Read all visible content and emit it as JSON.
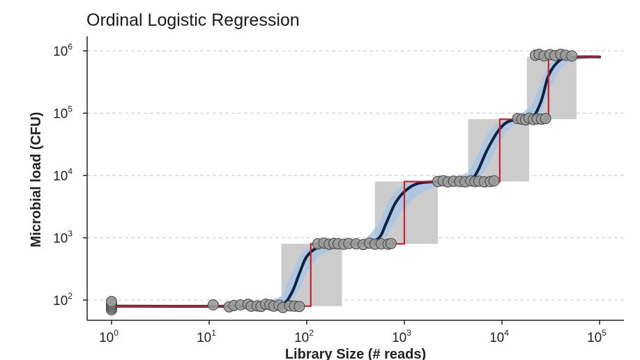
{
  "chart_data": {
    "type": "line",
    "title": "Ordinal Logistic Regression",
    "xlabel": "Library Size (# reads)",
    "ylabel": "Microbial load (CFU)",
    "x_scale": "log10",
    "y_scale": "log10",
    "xlim": [
      1,
      100000
    ],
    "ylim": [
      60,
      1200000
    ],
    "x_ticks": [
      {
        "value": 1,
        "base": "10",
        "exp": "0"
      },
      {
        "value": 10,
        "base": "10",
        "exp": "1"
      },
      {
        "value": 100,
        "base": "10",
        "exp": "2"
      },
      {
        "value": 1000,
        "base": "10",
        "exp": "3"
      },
      {
        "value": 10000,
        "base": "10",
        "exp": "4"
      },
      {
        "value": 100000,
        "base": "10",
        "exp": "5"
      }
    ],
    "y_ticks": [
      {
        "value": 100,
        "base": "10",
        "exp": "2"
      },
      {
        "value": 1000,
        "base": "10",
        "exp": "3"
      },
      {
        "value": 10000,
        "base": "10",
        "exp": "4"
      },
      {
        "value": 100000,
        "base": "10",
        "exp": "5"
      },
      {
        "value": 1000000,
        "base": "10",
        "exp": "6"
      }
    ],
    "grid": "horizontal dashed",
    "colors": {
      "points_fill": "#9a9a9a",
      "points_stroke": "#444444",
      "boxes": "#cccccc",
      "ribbon": "#a9c4e4",
      "fit_line": "#0f2340",
      "step_line": "#cc1f2a"
    },
    "boxes": [
      {
        "x0": 55,
        "x1": 230,
        "y0": 80,
        "y1": 800
      },
      {
        "x0": 500,
        "x1": 2200,
        "y0": 800,
        "y1": 8000
      },
      {
        "x0": 4500,
        "x1": 19000,
        "y0": 8000,
        "y1": 80000
      },
      {
        "x0": 18000,
        "x1": 58000,
        "y0": 80000,
        "y1": 800000
      }
    ],
    "step_line": [
      [
        1,
        80
      ],
      [
        110,
        80
      ],
      [
        110,
        800
      ],
      [
        1000,
        800
      ],
      [
        1000,
        8000
      ],
      [
        9500,
        8000
      ],
      [
        9500,
        80000
      ],
      [
        30000,
        80000
      ],
      [
        30000,
        800000
      ],
      [
        100000,
        800000
      ]
    ],
    "fit_curve": [
      [
        1,
        80
      ],
      [
        30,
        80
      ],
      [
        55,
        85
      ],
      [
        70,
        130
      ],
      [
        85,
        280
      ],
      [
        100,
        500
      ],
      [
        130,
        700
      ],
      [
        200,
        790
      ],
      [
        400,
        810
      ],
      [
        550,
        1000
      ],
      [
        650,
        1700
      ],
      [
        800,
        3500
      ],
      [
        1000,
        5500
      ],
      [
        1400,
        7500
      ],
      [
        2500,
        8000
      ],
      [
        4500,
        8200
      ],
      [
        5500,
        11000
      ],
      [
        7000,
        25000
      ],
      [
        9000,
        50000
      ],
      [
        11000,
        70000
      ],
      [
        14000,
        79000
      ],
      [
        20000,
        82000
      ],
      [
        25000,
        150000
      ],
      [
        30000,
        400000
      ],
      [
        38000,
        680000
      ],
      [
        50000,
        790000
      ],
      [
        100000,
        800000
      ]
    ],
    "ribbon": [
      [
        1,
        80,
        80
      ],
      [
        30,
        78,
        84
      ],
      [
        55,
        75,
        115
      ],
      [
        70,
        90,
        260
      ],
      [
        85,
        150,
        500
      ],
      [
        100,
        280,
        700
      ],
      [
        130,
        500,
        790
      ],
      [
        200,
        720,
        830
      ],
      [
        400,
        780,
        950
      ],
      [
        550,
        820,
        1700
      ],
      [
        650,
        1000,
        3200
      ],
      [
        800,
        1800,
        5500
      ],
      [
        1000,
        3000,
        7200
      ],
      [
        1400,
        5000,
        8000
      ],
      [
        2500,
        7600,
        8400
      ],
      [
        4500,
        7900,
        11000
      ],
      [
        5500,
        8300,
        20000
      ],
      [
        7000,
        13000,
        45000
      ],
      [
        9000,
        30000,
        68000
      ],
      [
        11000,
        50000,
        78000
      ],
      [
        14000,
        70000,
        85000
      ],
      [
        20000,
        79000,
        130000
      ],
      [
        25000,
        90000,
        300000
      ],
      [
        30000,
        220000,
        600000
      ],
      [
        38000,
        480000,
        780000
      ],
      [
        50000,
        700000,
        810000
      ],
      [
        100000,
        790000,
        810000
      ]
    ],
    "points": [
      [
        1,
        70
      ],
      [
        1,
        75
      ],
      [
        1,
        80
      ],
      [
        1,
        85
      ],
      [
        1,
        90
      ],
      [
        1,
        95
      ],
      [
        11,
        84
      ],
      [
        16,
        78
      ],
      [
        18,
        82
      ],
      [
        21,
        84
      ],
      [
        25,
        86
      ],
      [
        27,
        80
      ],
      [
        31,
        81
      ],
      [
        34,
        79
      ],
      [
        38,
        86
      ],
      [
        42,
        84
      ],
      [
        46,
        80
      ],
      [
        52,
        83
      ],
      [
        57,
        76
      ],
      [
        67,
        81
      ],
      [
        75,
        80
      ],
      [
        84,
        79
      ],
      [
        130,
        800
      ],
      [
        150,
        820
      ],
      [
        170,
        790
      ],
      [
        190,
        810
      ],
      [
        210,
        800
      ],
      [
        240,
        790
      ],
      [
        270,
        810
      ],
      [
        320,
        800
      ],
      [
        380,
        780
      ],
      [
        440,
        820
      ],
      [
        500,
        790
      ],
      [
        580,
        800
      ],
      [
        680,
        790
      ],
      [
        730,
        810
      ],
      [
        2200,
        8000
      ],
      [
        2500,
        8200
      ],
      [
        2800,
        7900
      ],
      [
        3200,
        8100
      ],
      [
        3700,
        8000
      ],
      [
        4200,
        7900
      ],
      [
        4800,
        8200
      ],
      [
        5300,
        8000
      ],
      [
        5800,
        8100
      ],
      [
        6600,
        7900
      ],
      [
        7600,
        8000
      ],
      [
        8300,
        8200
      ],
      [
        14500,
        82000
      ],
      [
        16000,
        80000
      ],
      [
        17500,
        78000
      ],
      [
        19000,
        83000
      ],
      [
        21000,
        79000
      ],
      [
        23000,
        81000
      ],
      [
        25500,
        80000
      ],
      [
        28000,
        82000
      ],
      [
        22000,
        850000
      ],
      [
        24000,
        880000
      ],
      [
        27000,
        830000
      ],
      [
        31000,
        870000
      ],
      [
        35000,
        840000
      ],
      [
        40000,
        880000
      ],
      [
        45000,
        850000
      ],
      [
        52000,
        830000
      ]
    ]
  }
}
